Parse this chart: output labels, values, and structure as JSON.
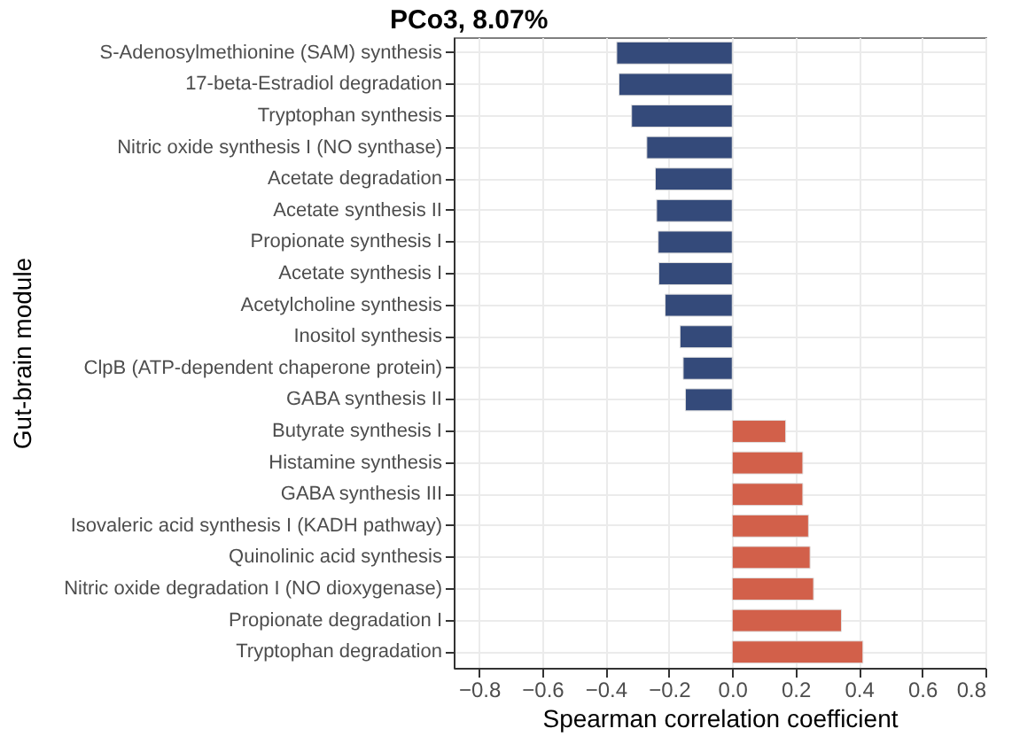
{
  "chart_data": {
    "type": "bar",
    "orientation": "horizontal",
    "title": "PCo3, 8.07%",
    "xlabel": "Spearman correlation coefficient",
    "ylabel": "Gut-brain module",
    "categories": [
      "S-Adenosylmethionine (SAM) synthesis",
      "17-beta-Estradiol degradation",
      "Tryptophan synthesis",
      "Nitric oxide synthesis I (NO synthase)",
      "Acetate degradation",
      "Acetate synthesis II",
      "Propionate synthesis I",
      "Acetate synthesis I",
      "Acetylcholine synthesis",
      "Inositol synthesis",
      "ClpB (ATP-dependent chaperone protein)",
      "GABA synthesis II",
      "Butyrate synthesis I",
      "Histamine synthesis",
      "GABA synthesis III",
      "Isovaleric acid synthesis I (KADH pathway)",
      "Quinolinic acid synthesis",
      "Nitric oxide degradation I (NO dioxygenase)",
      "Propionate degradation I",
      "Tryptophan degradation"
    ],
    "values": [
      -0.365,
      -0.358,
      -0.318,
      -0.27,
      -0.243,
      -0.239,
      -0.234,
      -0.232,
      -0.212,
      -0.165,
      -0.155,
      -0.148,
      0.169,
      0.223,
      0.223,
      0.241,
      0.246,
      0.257,
      0.345,
      0.413
    ],
    "colors": [
      "#344a7a",
      "#344a7a",
      "#344a7a",
      "#344a7a",
      "#344a7a",
      "#344a7a",
      "#344a7a",
      "#344a7a",
      "#344a7a",
      "#344a7a",
      "#344a7a",
      "#344a7a",
      "#d2604a",
      "#d2604a",
      "#d2604a",
      "#d2604a",
      "#d2604a",
      "#d2604a",
      "#d2604a",
      "#d2604a"
    ],
    "xlim": [
      -0.88,
      0.8
    ],
    "xticks": [
      -0.8,
      -0.6,
      -0.4,
      -0.2,
      {
        "value": 0,
        "label": "0.0"
      },
      0.2,
      0.4,
      0.6,
      0.8
    ],
    "grid": true
  }
}
